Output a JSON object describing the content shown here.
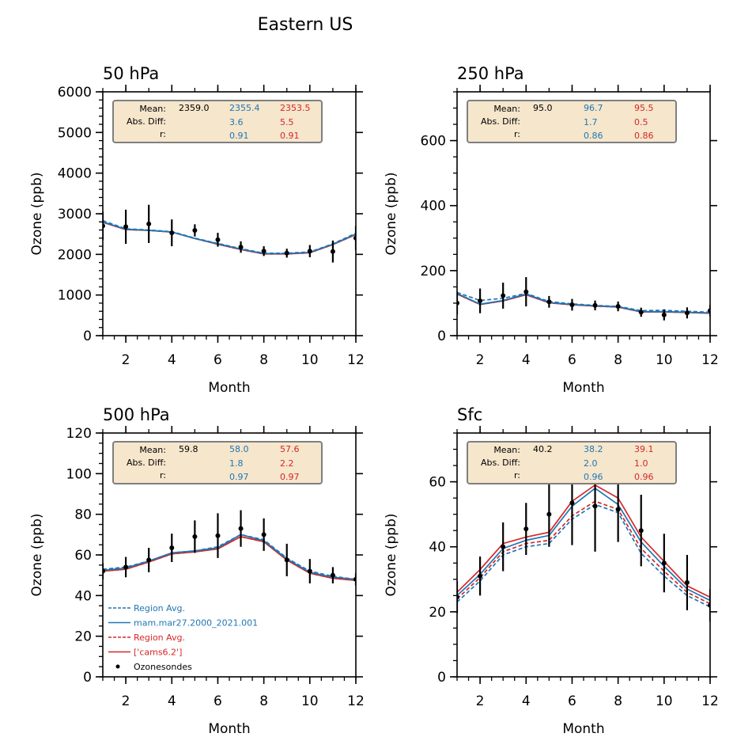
{
  "figure_title": "Eastern US",
  "colors": {
    "model1": "#1f77b4",
    "model2": "#d62728",
    "obs": "#000000",
    "statsbox_bg": "#f5e6cc"
  },
  "legend": [
    {
      "label": "Region Avg.",
      "style": "dashed",
      "color": "#1f77b4"
    },
    {
      "label": "mam.mar27.2000_2021.001",
      "style": "solid",
      "color": "#1f77b4"
    },
    {
      "label": "Region Avg.",
      "style": "dashed",
      "color": "#d62728"
    },
    {
      "label": "['cams6.2']",
      "style": "solid",
      "color": "#d62728"
    },
    {
      "label": "Ozonesondes",
      "style": "marker",
      "color": "#000000"
    }
  ],
  "stats_labels": {
    "mean": "Mean:",
    "absdiff": "Abs. Diff:",
    "r": "r:"
  },
  "chart_data": [
    {
      "type": "line",
      "title": "50 hPa",
      "xlabel": "Month",
      "ylabel": "Ozone (ppb)",
      "xlim": [
        1,
        12
      ],
      "ylim": [
        0,
        6000
      ],
      "xticks": [
        2,
        4,
        6,
        8,
        10,
        12
      ],
      "yticks": [
        0,
        1000,
        2000,
        3000,
        4000,
        5000,
        6000
      ],
      "yminor": 200,
      "x": [
        1,
        2,
        3,
        4,
        5,
        6,
        7,
        8,
        9,
        10,
        11,
        12
      ],
      "observations": {
        "name": "Ozonesondes",
        "values": [
          2700,
          2680,
          2750,
          2530,
          2590,
          2360,
          2180,
          2080,
          2030,
          2080,
          2070,
          2400
        ],
        "errors": [
          350,
          420,
          470,
          330,
          150,
          170,
          140,
          120,
          110,
          150,
          270,
          300
        ]
      },
      "series": [
        {
          "name": "Region Avg.",
          "model": "mam.mar27.2000_2021.001",
          "style": "dashed",
          "color": "#1f77b4",
          "values": [
            2830,
            2630,
            2600,
            2560,
            2400,
            2270,
            2140,
            2030,
            2030,
            2060,
            2260,
            2520
          ]
        },
        {
          "name": "mam.mar27.2000_2021.001",
          "style": "solid",
          "color": "#1f77b4",
          "values": [
            2800,
            2620,
            2590,
            2550,
            2390,
            2260,
            2130,
            2020,
            2020,
            2050,
            2250,
            2500
          ]
        },
        {
          "name": "Region Avg.",
          "model": "['cams6.2']",
          "style": "dashed",
          "color": "#d62728",
          "values": [
            2790,
            2610,
            2590,
            2550,
            2390,
            2250,
            2120,
            2010,
            2010,
            2040,
            2240,
            2490
          ]
        },
        {
          "name": "['cams6.2']",
          "style": "solid",
          "color": "#d62728",
          "values": [
            2790,
            2610,
            2590,
            2550,
            2390,
            2250,
            2120,
            2010,
            2010,
            2040,
            2240,
            2490
          ]
        }
      ],
      "stats": {
        "obs_mean": "2359.0",
        "m1_mean": "2355.4",
        "m2_mean": "2353.5",
        "m1_absdiff": "3.6",
        "m2_absdiff": "5.5",
        "m1_r": "0.91",
        "m2_r": "0.91"
      }
    },
    {
      "type": "line",
      "title": "250 hPa",
      "xlabel": "Month",
      "ylabel": "Ozone (ppb)",
      "xlim": [
        1,
        12
      ],
      "ylim": [
        0,
        750
      ],
      "xticks": [
        2,
        4,
        6,
        8,
        10,
        12
      ],
      "yticks": [
        0,
        200,
        400,
        600
      ],
      "yminor": 50,
      "x": [
        1,
        2,
        3,
        4,
        5,
        6,
        7,
        8,
        9,
        10,
        11,
        12
      ],
      "observations": {
        "name": "Ozonesondes",
        "values": [
          100,
          107,
          123,
          135,
          104,
          95,
          93,
          90,
          72,
          64,
          70,
          77
        ],
        "errors": [
          35,
          38,
          40,
          45,
          18,
          18,
          15,
          15,
          14,
          17,
          17,
          18
        ]
      },
      "series": [
        {
          "name": "Region Avg.",
          "model": "mam.mar27.2000_2021.001",
          "style": "dashed",
          "color": "#1f77b4",
          "values": [
            133,
            108,
            115,
            130,
            105,
            98,
            93,
            90,
            77,
            78,
            75,
            72
          ]
        },
        {
          "name": "mam.mar27.2000_2021.001",
          "style": "solid",
          "color": "#1f77b4",
          "values": [
            130,
            97,
            108,
            128,
            102,
            96,
            92,
            89,
            74,
            74,
            72,
            70
          ]
        },
        {
          "name": "Region Avg.",
          "model": "['cams6.2']",
          "style": "dashed",
          "color": "#d62728",
          "values": [
            128,
            96,
            107,
            126,
            101,
            95,
            91,
            88,
            73,
            73,
            71,
            69
          ]
        },
        {
          "name": "['cams6.2']",
          "style": "solid",
          "color": "#d62728",
          "values": [
            128,
            96,
            107,
            126,
            101,
            95,
            91,
            88,
            73,
            73,
            71,
            69
          ]
        }
      ],
      "stats": {
        "obs_mean": "95.0",
        "m1_mean": "96.7",
        "m2_mean": "95.5",
        "m1_absdiff": "1.7",
        "m2_absdiff": "0.5",
        "m1_r": "0.86",
        "m2_r": "0.86"
      }
    },
    {
      "type": "line",
      "title": "500 hPa",
      "xlabel": "Month",
      "ylabel": "Ozone (ppb)",
      "xlim": [
        1,
        12
      ],
      "ylim": [
        0,
        120
      ],
      "xticks": [
        2,
        4,
        6,
        8,
        10,
        12
      ],
      "yticks": [
        0,
        20,
        40,
        60,
        80,
        100,
        120
      ],
      "yminor": 5,
      "x": [
        1,
        2,
        3,
        4,
        5,
        6,
        7,
        8,
        9,
        10,
        11,
        12
      ],
      "observations": {
        "name": "Ozonesondes",
        "values": [
          52,
          54,
          57.5,
          63.5,
          69,
          69.5,
          73,
          70,
          57.5,
          52,
          50,
          48
        ],
        "errors": [
          4,
          5,
          6,
          7,
          8,
          11,
          9,
          8,
          8,
          6,
          4,
          3
        ]
      },
      "series": [
        {
          "name": "Region Avg.",
          "model": "mam.mar27.2000_2021.001",
          "style": "dashed",
          "color": "#1f77b4",
          "values": [
            53,
            54,
            57,
            61,
            62,
            64,
            70,
            67.5,
            58.5,
            52,
            49.5,
            48
          ]
        },
        {
          "name": "mam.mar27.2000_2021.001",
          "style": "solid",
          "color": "#1f77b4",
          "values": [
            52.5,
            53.5,
            57,
            61,
            62,
            63.5,
            70,
            67,
            58,
            51.5,
            49,
            48
          ]
        },
        {
          "name": "Region Avg.",
          "model": "['cams6.2']",
          "style": "dashed",
          "color": "#d62728",
          "values": [
            52,
            53,
            56.5,
            60.5,
            61.5,
            63,
            69,
            66.5,
            57.5,
            51,
            48.5,
            47.5
          ]
        },
        {
          "name": "['cams6.2']",
          "style": "solid",
          "color": "#d62728",
          "values": [
            52,
            53,
            56.5,
            60.5,
            61.5,
            63,
            69,
            66.5,
            57.5,
            51,
            48.5,
            47.5
          ]
        }
      ],
      "stats": {
        "obs_mean": "59.8",
        "m1_mean": "58.0",
        "m2_mean": "57.6",
        "m1_absdiff": "1.8",
        "m2_absdiff": "2.2",
        "m1_r": "0.97",
        "m2_r": "0.97"
      }
    },
    {
      "type": "line",
      "title": "Sfc",
      "xlabel": "Month",
      "ylabel": "Ozone (ppb)",
      "xlim": [
        1,
        12
      ],
      "ylim": [
        0,
        75
      ],
      "xticks": [
        2,
        4,
        6,
        8,
        10,
        12
      ],
      "yticks": [
        0,
        20,
        40,
        60
      ],
      "yminor": 5,
      "x": [
        1,
        2,
        3,
        4,
        5,
        6,
        7,
        8,
        9,
        10,
        11,
        12
      ],
      "observations": {
        "name": "Ozonesondes",
        "values": [
          24.5,
          31,
          40,
          45.5,
          50,
          53.5,
          52.5,
          51.5,
          45,
          35,
          29,
          22
        ],
        "errors": [
          5,
          6,
          7.5,
          8,
          10,
          13,
          14,
          10,
          11,
          9,
          8.5,
          5
        ]
      },
      "series": [
        {
          "name": "Region Avg.",
          "model": "mam.mar27.2000_2021.001",
          "style": "dashed",
          "color": "#1f77b4",
          "values": [
            23,
            29.5,
            37.5,
            40,
            41,
            48.5,
            53,
            50.5,
            38,
            31,
            25,
            21.5
          ]
        },
        {
          "name": "mam.mar27.2000_2021.001",
          "style": "solid",
          "color": "#1f77b4",
          "values": [
            25,
            31.5,
            39.5,
            42,
            43.5,
            52.5,
            58,
            53,
            41.5,
            34,
            27,
            23.5
          ]
        },
        {
          "name": "Region Avg.",
          "model": "['cams6.2']",
          "style": "dashed",
          "color": "#d62728",
          "values": [
            24,
            30.5,
            38.5,
            41,
            42,
            49.5,
            54,
            51.5,
            39.5,
            32.5,
            26,
            22.5
          ]
        },
        {
          "name": "['cams6.2']",
          "style": "solid",
          "color": "#d62728",
          "values": [
            26,
            33,
            41,
            43,
            44.5,
            54,
            59,
            55,
            43,
            35.5,
            28,
            24.5
          ]
        }
      ],
      "stats": {
        "obs_mean": "40.2",
        "m1_mean": "38.2",
        "m2_mean": "39.1",
        "m1_absdiff": "2.0",
        "m2_absdiff": "1.0",
        "m1_r": "0.96",
        "m2_r": "0.96"
      }
    }
  ]
}
